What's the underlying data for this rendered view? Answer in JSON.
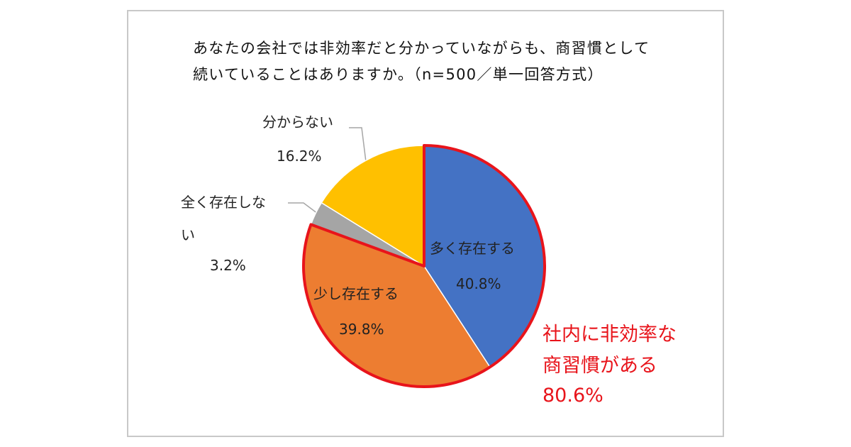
{
  "chart_data": {
    "type": "pie",
    "title": "あなたの会社では非効率だと分かっていながらも、商習慣として続いていることはありますか。（n=500／単一回答方式）",
    "categories": [
      "多く存在する",
      "少し存在する",
      "全く存在しない",
      "分からない"
    ],
    "values": [
      40.8,
      39.8,
      3.2,
      16.2
    ],
    "value_labels": [
      "40.8%",
      "39.8%",
      "3.2%",
      "16.2%"
    ],
    "colors": [
      "#4472c4",
      "#ed7d31",
      "#a5a5a5",
      "#ffc000"
    ],
    "annotation": {
      "text": "社内に非効率な商習慣がある",
      "value": 80.6,
      "label": "80.6%",
      "color": "#e8141b"
    }
  }
}
